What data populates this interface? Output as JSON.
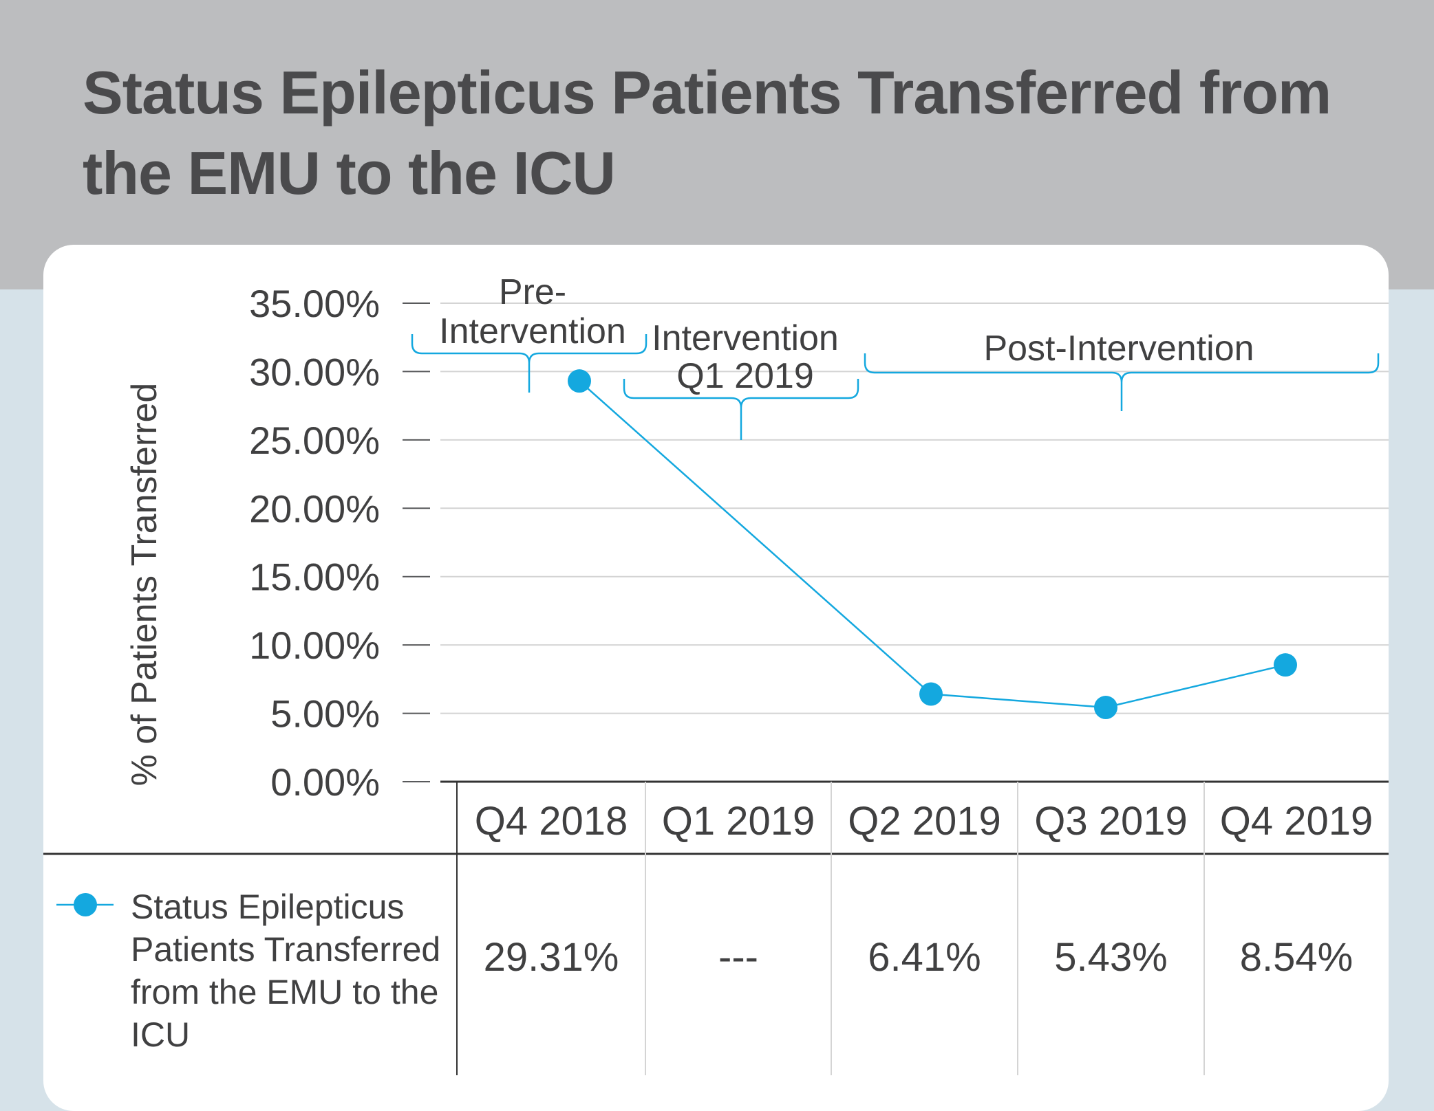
{
  "title": "Status Epilepticus Patients Transferred from the EMU to the ICU",
  "colors": {
    "accent": "#14a8df",
    "header_bg": "#bcbdbf",
    "page_bg": "#d6e2e9",
    "text": "#404041"
  },
  "chart_data": {
    "type": "line",
    "title": "Status Epilepticus Patients Transferred from the EMU to the ICU",
    "xlabel": "",
    "ylabel": "% of Patients Transferred",
    "categories": [
      "Q4 2018",
      "Q1 2019",
      "Q2 2019",
      "Q3 2019",
      "Q4 2019"
    ],
    "series": [
      {
        "name": "Status Epilepticus Patients Transferred from the EMU to the ICU",
        "values": [
          29.31,
          null,
          6.41,
          5.43,
          8.54
        ]
      }
    ],
    "yticks": [
      "0.00%",
      "5.00%",
      "10.00%",
      "15.00%",
      "20.00%",
      "25.00%",
      "30.00%",
      "35.00%"
    ],
    "ylim": [
      0,
      35
    ],
    "grid": true,
    "phases": [
      {
        "label": "Pre-\nIntervention"
      },
      {
        "label": "Intervention\nQ1 2019"
      },
      {
        "label": "Post-Intervention"
      }
    ],
    "table_values": [
      "29.31%",
      "---",
      "6.41%",
      "5.43%",
      "8.54%"
    ]
  }
}
